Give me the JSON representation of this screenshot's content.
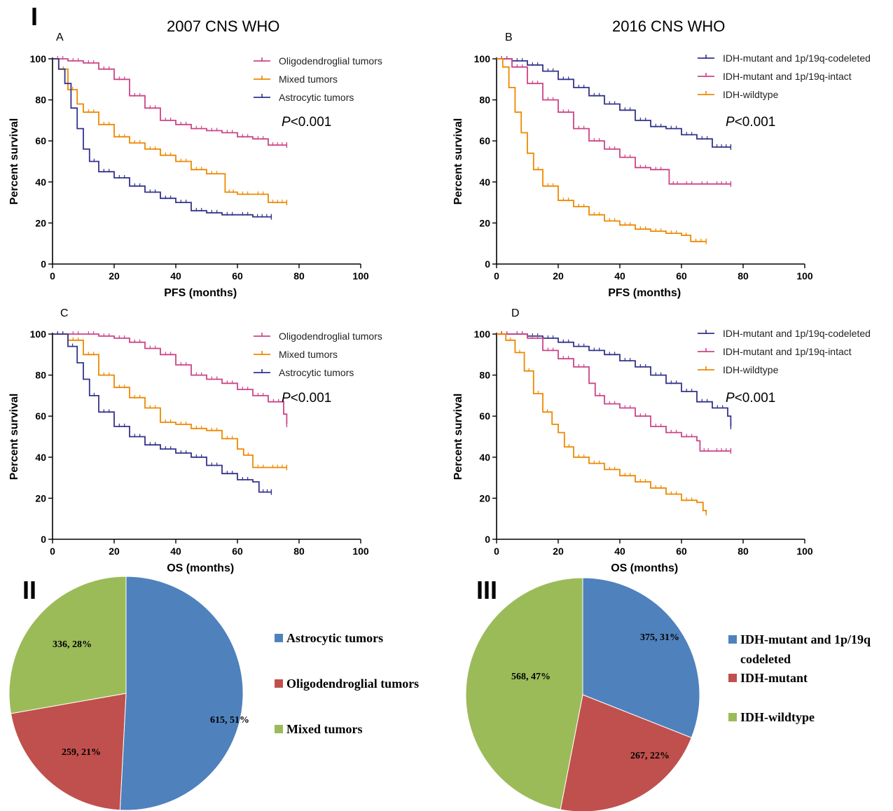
{
  "figure": {
    "section_I": "I",
    "section_II": "II",
    "section_III": "III",
    "title_2007": "2007 CNS WHO",
    "title_2016": "2016 CNS WHO"
  },
  "colors": {
    "pink": "#CC4488",
    "orange": "#EE8800",
    "navy": "#33338A",
    "pie_blue": "#4F81BD",
    "pie_red": "#C0504D",
    "pie_green": "#9BBB59"
  },
  "chart_data": [
    {
      "type": "line",
      "panel": "A",
      "xlabel": "PFS (months)",
      "ylabel": "Percent survival",
      "xlim": [
        0,
        100
      ],
      "ylim": [
        0,
        100
      ],
      "xticks": [
        0,
        20,
        40,
        60,
        80,
        100
      ],
      "yticks": [
        0,
        20,
        40,
        60,
        80,
        100
      ],
      "pvalue": "<0.001",
      "legend_position": "top-right",
      "series": [
        {
          "name": "Oligodendroglial tumors",
          "color": "#CC4488",
          "censored": true,
          "x": [
            0,
            5,
            10,
            15,
            20,
            25,
            30,
            35,
            40,
            45,
            50,
            55,
            60,
            65,
            70,
            76
          ],
          "y": [
            100,
            99,
            98,
            95,
            90,
            82,
            76,
            70,
            68,
            66,
            65,
            64,
            62,
            61,
            58,
            58
          ]
        },
        {
          "name": "Mixed tumors",
          "color": "#EE8800",
          "censored": true,
          "x": [
            0,
            2,
            5,
            8,
            10,
            15,
            20,
            25,
            30,
            35,
            40,
            45,
            50,
            55,
            56,
            60,
            65,
            70,
            76
          ],
          "y": [
            100,
            95,
            85,
            78,
            74,
            68,
            62,
            59,
            56,
            53,
            50,
            46,
            44,
            44,
            35,
            34,
            34,
            30,
            30
          ]
        },
        {
          "name": "Astrocytic tumors",
          "color": "#33338A",
          "censored": true,
          "x": [
            0,
            2,
            4,
            6,
            8,
            10,
            12,
            15,
            20,
            25,
            30,
            35,
            40,
            45,
            50,
            55,
            60,
            65,
            71
          ],
          "y": [
            100,
            95,
            88,
            76,
            66,
            56,
            50,
            45,
            42,
            38,
            35,
            32,
            30,
            26,
            25,
            24,
            24,
            23,
            23
          ]
        }
      ]
    },
    {
      "type": "line",
      "panel": "B",
      "xlabel": "PFS (months)",
      "ylabel": "Percent survival",
      "xlim": [
        0,
        100
      ],
      "ylim": [
        0,
        100
      ],
      "xticks": [
        0,
        20,
        40,
        60,
        80,
        100
      ],
      "yticks": [
        0,
        20,
        40,
        60,
        80,
        100
      ],
      "pvalue": "<0.001",
      "legend_position": "top-right",
      "series": [
        {
          "name": "IDH-mutant and 1p/19q-codeleted",
          "color": "#33338A",
          "censored": true,
          "x": [
            0,
            5,
            10,
            15,
            20,
            25,
            30,
            35,
            40,
            45,
            50,
            55,
            60,
            65,
            70,
            76
          ],
          "y": [
            100,
            99,
            97,
            94,
            90,
            86,
            82,
            78,
            75,
            70,
            67,
            66,
            63,
            61,
            57,
            57
          ]
        },
        {
          "name": "IDH-mutant and 1p/19q-intact",
          "color": "#CC4488",
          "censored": true,
          "x": [
            0,
            5,
            10,
            15,
            20,
            25,
            30,
            35,
            40,
            45,
            50,
            55,
            56,
            60,
            65,
            70,
            76
          ],
          "y": [
            100,
            96,
            88,
            80,
            74,
            66,
            60,
            56,
            52,
            47,
            46,
            46,
            39,
            39,
            39,
            39,
            39
          ]
        },
        {
          "name": "IDH-wildtype",
          "color": "#EE8800",
          "censored": true,
          "x": [
            0,
            2,
            4,
            6,
            8,
            10,
            12,
            15,
            20,
            25,
            30,
            35,
            40,
            45,
            50,
            55,
            60,
            63,
            68
          ],
          "y": [
            100,
            96,
            86,
            74,
            64,
            54,
            46,
            38,
            31,
            28,
            24,
            21,
            19,
            17,
            16,
            15,
            14,
            11,
            11
          ]
        }
      ]
    },
    {
      "type": "line",
      "panel": "C",
      "xlabel": "OS (months)",
      "ylabel": "Percent survival",
      "xlim": [
        0,
        100
      ],
      "ylim": [
        0,
        100
      ],
      "xticks": [
        0,
        20,
        40,
        60,
        80,
        100
      ],
      "yticks": [
        0,
        20,
        40,
        60,
        80,
        100
      ],
      "pvalue": "<0.001",
      "legend_position": "top-right",
      "series": [
        {
          "name": "Oligodendroglial tumors",
          "color": "#CC4488",
          "censored": true,
          "x": [
            0,
            5,
            10,
            15,
            20,
            25,
            30,
            35,
            40,
            45,
            50,
            55,
            60,
            65,
            70,
            75,
            76
          ],
          "y": [
            100,
            100,
            100,
            99,
            98,
            96,
            93,
            90,
            85,
            80,
            78,
            76,
            73,
            70,
            67,
            61,
            56
          ]
        },
        {
          "name": "Mixed tumors",
          "color": "#EE8800",
          "censored": true,
          "x": [
            0,
            5,
            10,
            15,
            20,
            25,
            30,
            35,
            40,
            45,
            50,
            55,
            60,
            62,
            65,
            70,
            76
          ],
          "y": [
            100,
            97,
            90,
            80,
            74,
            69,
            64,
            57,
            56,
            54,
            53,
            49,
            44,
            41,
            35,
            35,
            35
          ]
        },
        {
          "name": "Astrocytic tumors",
          "color": "#33338A",
          "censored": true,
          "x": [
            0,
            5,
            8,
            10,
            12,
            15,
            20,
            25,
            30,
            35,
            40,
            45,
            50,
            55,
            60,
            65,
            67,
            71
          ],
          "y": [
            100,
            94,
            86,
            78,
            70,
            62,
            55,
            50,
            46,
            44,
            42,
            40,
            36,
            32,
            29,
            28,
            23,
            23
          ]
        }
      ]
    },
    {
      "type": "line",
      "panel": "D",
      "xlabel": "OS (months)",
      "ylabel": "Percent survival",
      "xlim": [
        0,
        100
      ],
      "ylim": [
        0,
        100
      ],
      "xticks": [
        0,
        20,
        40,
        60,
        80,
        100
      ],
      "yticks": [
        0,
        20,
        40,
        60,
        80,
        100
      ],
      "pvalue": "<0.001",
      "legend_position": "top-right",
      "series": [
        {
          "name": "IDH-mutant and 1p/19q-codeleted",
          "color": "#33338A",
          "censored": true,
          "x": [
            0,
            5,
            10,
            15,
            20,
            25,
            30,
            35,
            40,
            45,
            50,
            55,
            60,
            65,
            70,
            75,
            76
          ],
          "y": [
            100,
            100,
            99,
            98,
            96,
            94,
            92,
            90,
            87,
            84,
            80,
            76,
            72,
            67,
            64,
            60,
            55
          ]
        },
        {
          "name": "IDH-mutant and 1p/19q-intact",
          "color": "#CC4488",
          "censored": true,
          "x": [
            0,
            5,
            10,
            15,
            20,
            25,
            30,
            32,
            35,
            40,
            45,
            50,
            55,
            60,
            65,
            66,
            70,
            76
          ],
          "y": [
            100,
            100,
            98,
            92,
            88,
            84,
            76,
            70,
            66,
            64,
            60,
            55,
            52,
            50,
            48,
            43,
            43,
            43
          ]
        },
        {
          "name": "IDH-wildtype",
          "color": "#EE8800",
          "censored": true,
          "x": [
            0,
            3,
            6,
            9,
            12,
            15,
            18,
            20,
            22,
            25,
            30,
            35,
            40,
            45,
            50,
            55,
            60,
            65,
            67,
            68
          ],
          "y": [
            100,
            97,
            91,
            82,
            71,
            62,
            56,
            52,
            45,
            40,
            37,
            34,
            31,
            28,
            25,
            22,
            19,
            18,
            14,
            13
          ]
        }
      ]
    },
    {
      "type": "pie",
      "panel": "II",
      "legend_position": "right",
      "slices": [
        {
          "name": "Astrocytic tumors",
          "value": 615,
          "percent": 51,
          "label": "615, 51%",
          "color": "#4F81BD"
        },
        {
          "name": "Oligodendroglial tumors",
          "value": 259,
          "percent": 21,
          "label": "259, 21%",
          "color": "#C0504D"
        },
        {
          "name": "Mixed tumors",
          "value": 336,
          "percent": 28,
          "label": "336, 28%",
          "color": "#9BBB59"
        }
      ]
    },
    {
      "type": "pie",
      "panel": "III",
      "legend_position": "right",
      "slices": [
        {
          "name": "IDH-mutant and 1p/19q codeleted",
          "legend_lines": [
            "IDH-mutant and 1p/19q",
            "codeleted"
          ],
          "value": 375,
          "percent": 31,
          "label": "375, 31%",
          "color": "#4F81BD"
        },
        {
          "name": "IDH-mutant",
          "legend_lines": [
            "IDH-mutant"
          ],
          "value": 267,
          "percent": 22,
          "label": "267, 22%",
          "color": "#C0504D"
        },
        {
          "name": "IDH-wildtype",
          "legend_lines": [
            "IDH-wildtype"
          ],
          "value": 568,
          "percent": 47,
          "label": "568, 47%",
          "color": "#9BBB59"
        }
      ]
    }
  ]
}
